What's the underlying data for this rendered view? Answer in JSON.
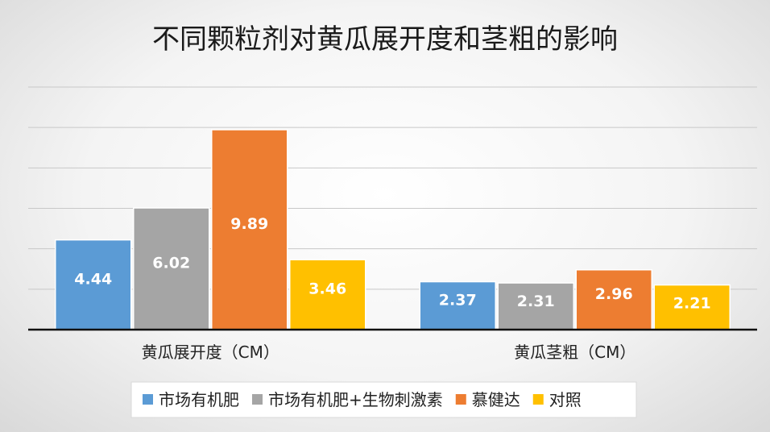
{
  "chart_data": {
    "type": "bar",
    "title": "不同颗粒剂对黄瓜展开度和茎粗的影响",
    "categories": [
      "黄瓜展开度（CM）",
      "黄瓜茎粗（CM）"
    ],
    "series": [
      {
        "name": "市场有机肥",
        "color": "#5b9bd5",
        "values": [
          4.44,
          2.37
        ]
      },
      {
        "name": "市场有机肥+生物刺激素",
        "color": "#a5a5a5",
        "values": [
          6.02,
          2.31
        ]
      },
      {
        "name": "慕健达",
        "color": "#ed7d31",
        "values": [
          9.89,
          2.96
        ]
      },
      {
        "name": "对照",
        "color": "#ffc000",
        "values": [
          3.46,
          2.21
        ]
      }
    ],
    "ylim": [
      0,
      12
    ],
    "gridlines": true,
    "legend_position": "bottom",
    "xlabel": "",
    "ylabel": ""
  }
}
